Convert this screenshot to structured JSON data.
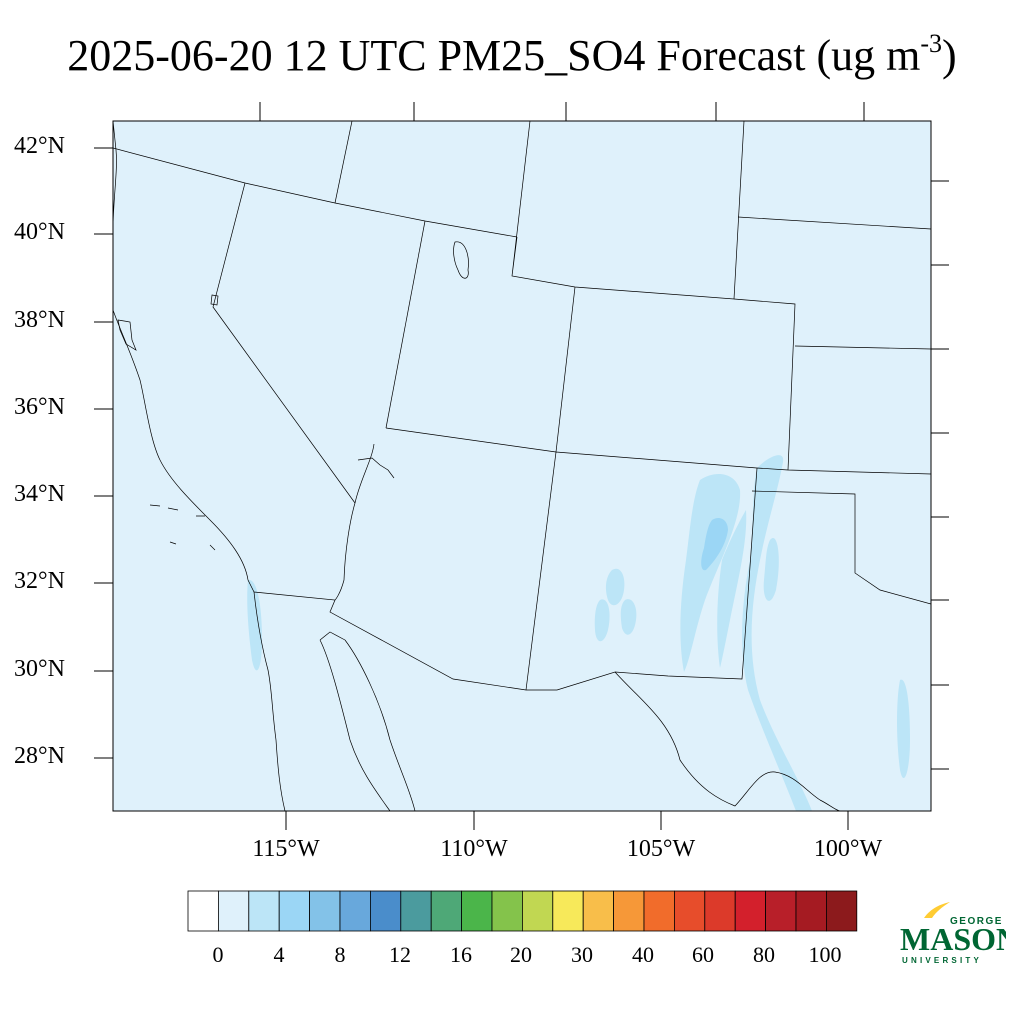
{
  "title": {
    "main": "2025-06-20 12 UTC PM25_SO4 Forecast (ug m",
    "exponent": "-3",
    "close": ")"
  },
  "map": {
    "region": "Southwestern United States and northern Mexico",
    "background_color": "#dff1fb",
    "boundary_color": "#000000"
  },
  "axes": {
    "lat_labels": [
      "42°N",
      "40°N",
      "38°N",
      "36°N",
      "34°N",
      "32°N",
      "30°N",
      "28°N"
    ],
    "lon_labels": [
      "115°W",
      "110°W",
      "105°W",
      "100°W"
    ]
  },
  "colorbar": {
    "colors": [
      "#ffffff",
      "#dff1fb",
      "#bce5f7",
      "#9bd6f5",
      "#83c2e8",
      "#68a8dc",
      "#4a8dcb",
      "#4b9b9e",
      "#4ea877",
      "#4bb54a",
      "#84c34b",
      "#c1d752",
      "#f7e95a",
      "#f8be4a",
      "#f69838",
      "#f16c2b",
      "#e74d2b",
      "#dc3a2a",
      "#d3202c",
      "#b81f29",
      "#a51b22",
      "#8c1a1c"
    ],
    "labels": [
      "0",
      "4",
      "8",
      "12",
      "16",
      "20",
      "30",
      "40",
      "60",
      "80",
      "100"
    ]
  },
  "logo": {
    "top": "GEORGE",
    "middle": "MASON",
    "bottom": "UNIVERSITY",
    "green": "#006633",
    "gold": "#ffcc33"
  }
}
